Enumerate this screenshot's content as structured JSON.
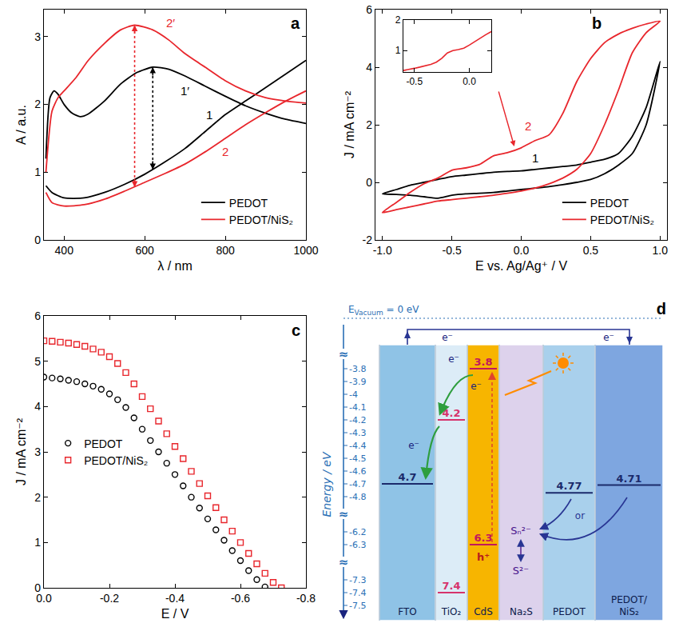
{
  "chart_data": [
    {
      "type": "line",
      "panel_label": "a",
      "x_label": "λ / nm",
      "y_label": "A / a.u.",
      "xlim": [
        350,
        1000
      ],
      "xticks": [
        400,
        600,
        800,
        1000
      ],
      "ylim": [
        0,
        3.4
      ],
      "yticks": [
        0,
        1,
        2,
        3
      ],
      "grid": false,
      "legend": "lower right",
      "series": [
        {
          "name": "PEDOT",
          "color": "#000000",
          "label": "1",
          "label_at": [
            760,
            1.85
          ],
          "x": [
            355,
            370,
            400,
            450,
            500,
            550,
            600,
            650,
            700,
            750,
            800,
            850,
            900,
            950,
            1000
          ],
          "values": [
            0.8,
            0.7,
            0.62,
            0.62,
            0.7,
            0.82,
            0.97,
            1.15,
            1.35,
            1.6,
            1.85,
            2.05,
            2.25,
            2.45,
            2.65
          ]
        },
        {
          "name": "PEDOT",
          "color": "#000000",
          "label": "1′",
          "label_at": [
            700,
            2.2
          ],
          "x": [
            355,
            365,
            375,
            385,
            400,
            420,
            440,
            460,
            500,
            540,
            580,
            620,
            660,
            700,
            750,
            800,
            850,
            900,
            950,
            1000
          ],
          "values": [
            1.2,
            2.1,
            2.2,
            2.15,
            2.0,
            1.87,
            1.82,
            1.86,
            2.05,
            2.3,
            2.47,
            2.55,
            2.52,
            2.42,
            2.27,
            2.12,
            1.98,
            1.87,
            1.78,
            1.72
          ]
        },
        {
          "name": "PEDOT/NiS₂",
          "color": "#e8262c",
          "label": "2",
          "label_at": [
            800,
            1.3
          ],
          "x": [
            355,
            370,
            400,
            450,
            500,
            550,
            600,
            650,
            700,
            750,
            800,
            850,
            900,
            950,
            1000
          ],
          "values": [
            0.7,
            0.55,
            0.5,
            0.52,
            0.6,
            0.72,
            0.85,
            0.98,
            1.12,
            1.3,
            1.5,
            1.7,
            1.88,
            2.05,
            2.2
          ]
        },
        {
          "name": "PEDOT/NiS₂",
          "color": "#e8262c",
          "label": "2′",
          "label_at": [
            665,
            3.2
          ],
          "x": [
            355,
            370,
            385,
            400,
            430,
            460,
            500,
            540,
            575,
            620,
            660,
            700,
            750,
            800,
            850,
            900,
            950,
            1000
          ],
          "values": [
            1.0,
            1.9,
            2.1,
            2.2,
            2.4,
            2.65,
            2.9,
            3.1,
            3.17,
            3.1,
            2.95,
            2.75,
            2.55,
            2.35,
            2.2,
            2.1,
            2.05,
            2.02
          ]
        }
      ],
      "arrows": [
        {
          "x": 575,
          "y0": 0.78,
          "y1": 3.17,
          "color": "#e8262c"
        },
        {
          "x": 620,
          "y0": 1.04,
          "y1": 2.55,
          "color": "#000000"
        }
      ]
    },
    {
      "type": "line",
      "panel_label": "b",
      "x_label": "E vs. Ag/Ag⁺ / V",
      "y_label": "J / mA cm⁻²",
      "xlim": [
        -1.05,
        1.05
      ],
      "xticks": [
        {
          "value": -1,
          "label": "-1.0"
        },
        -0.5,
        {
          "value": 0,
          "label": "0.0"
        },
        0.5,
        {
          "value": 1,
          "label": "1.0"
        }
      ],
      "ylim": [
        -2,
        6
      ],
      "yticks": [
        -2,
        0,
        2,
        4,
        6
      ],
      "grid": false,
      "legend": "lower right",
      "series": [
        {
          "name": "PEDOT",
          "color": "#000000",
          "label": "1",
          "label_at": [
            0.1,
            0.85
          ],
          "x": [
            -1.0,
            -0.9,
            -0.8,
            -0.7,
            -0.6,
            -0.5,
            -0.4,
            -0.3,
            -0.2,
            -0.1,
            0,
            0.1,
            0.2,
            0.3,
            0.4,
            0.5,
            0.6,
            0.7,
            0.8,
            0.9,
            1.0,
            0.9,
            0.8,
            0.7,
            0.6,
            0.5,
            0.4,
            0.3,
            0.2,
            0.1,
            0,
            -0.1,
            -0.2,
            -0.3,
            -0.4,
            -0.5,
            -0.6,
            -0.7,
            -0.8,
            -0.9,
            -1.0
          ],
          "values": [
            -0.4,
            -0.25,
            -0.1,
            0,
            0.1,
            0.2,
            0.25,
            0.3,
            0.35,
            0.38,
            0.4,
            0.45,
            0.5,
            0.55,
            0.6,
            0.7,
            0.8,
            1.0,
            1.6,
            2.6,
            4.2,
            2.0,
            1.0,
            0.6,
            0.3,
            0.1,
            0,
            -0.08,
            -0.15,
            -0.2,
            -0.25,
            -0.3,
            -0.35,
            -0.38,
            -0.4,
            -0.45,
            -0.55,
            -0.5,
            -0.45,
            -0.42,
            -0.4
          ]
        },
        {
          "name": "PEDOT/NiS₂",
          "color": "#e8262c",
          "label": "2",
          "label_at": [
            0.05,
            1.95
          ],
          "x": [
            -1.0,
            -0.9,
            -0.8,
            -0.7,
            -0.6,
            -0.5,
            -0.4,
            -0.3,
            -0.2,
            -0.1,
            0,
            0.1,
            0.2,
            0.3,
            0.4,
            0.5,
            0.6,
            0.7,
            0.8,
            0.9,
            1.0,
            0.9,
            0.8,
            0.7,
            0.6,
            0.5,
            0.4,
            0.3,
            0.2,
            0.1,
            0,
            -0.1,
            -0.2,
            -0.3,
            -0.4,
            -0.5,
            -0.6,
            -0.7,
            -0.8,
            -0.9,
            -1.0
          ],
          "values": [
            -1.05,
            -0.7,
            -0.35,
            -0.05,
            0.15,
            0.42,
            0.5,
            0.62,
            0.92,
            1.03,
            1.2,
            1.45,
            1.65,
            2.4,
            3.5,
            4.3,
            4.85,
            5.15,
            5.35,
            5.5,
            5.6,
            5.2,
            4.5,
            3.2,
            2.0,
            1.0,
            0.45,
            0.15,
            -0.05,
            -0.2,
            -0.3,
            -0.38,
            -0.45,
            -0.5,
            -0.55,
            -0.6,
            -0.65,
            -0.75,
            -0.85,
            -0.95,
            -1.05
          ]
        }
      ],
      "inset": {
        "color": "#e8262c",
        "x": [
          -0.6,
          -0.55,
          -0.5,
          -0.45,
          -0.4,
          -0.35,
          -0.3,
          -0.25,
          -0.2,
          -0.15,
          -0.1,
          -0.05,
          0,
          0.05,
          0.1,
          0.15,
          0.2
        ],
        "values": [
          0.35,
          0.38,
          0.42,
          0.46,
          0.5,
          0.55,
          0.62,
          0.75,
          0.92,
          1.0,
          1.03,
          1.08,
          1.18,
          1.3,
          1.42,
          1.52,
          1.62
        ],
        "xlim": [
          -0.6,
          0.2
        ],
        "xticks": [
          -0.5,
          {
            "value": 0,
            "label": "0.0"
          }
        ],
        "ylim": [
          0.3,
          2
        ],
        "yticks": [
          1,
          2
        ],
        "points_to": [
          -0.05,
          1.25
        ]
      }
    },
    {
      "type": "scatter",
      "panel_label": "c",
      "x_label": "E / V",
      "y_label": "J / mA cm⁻²",
      "xlim": [
        0,
        -0.8
      ],
      "xticks": [
        {
          "value": 0,
          "label": "0.0"
        },
        -0.2,
        -0.4,
        -0.6,
        -0.8
      ],
      "ylim": [
        0,
        6
      ],
      "yticks": [
        0,
        1,
        2,
        3,
        4,
        5,
        6
      ],
      "grid": false,
      "legend": "left",
      "series": [
        {
          "name": "PEDOT",
          "color": "#000000",
          "marker": "circle-open",
          "x": [
            0,
            -0.025,
            -0.05,
            -0.075,
            -0.1,
            -0.125,
            -0.15,
            -0.175,
            -0.2,
            -0.225,
            -0.25,
            -0.275,
            -0.3,
            -0.325,
            -0.35,
            -0.375,
            -0.4,
            -0.425,
            -0.45,
            -0.475,
            -0.5,
            -0.525,
            -0.55,
            -0.575,
            -0.6,
            -0.625,
            -0.65,
            -0.675
          ],
          "values": [
            4.65,
            4.63,
            4.61,
            4.58,
            4.55,
            4.5,
            4.45,
            4.38,
            4.28,
            4.15,
            3.98,
            3.75,
            3.5,
            3.25,
            3.0,
            2.75,
            2.5,
            2.25,
            2.0,
            1.76,
            1.52,
            1.28,
            1.05,
            0.82,
            0.6,
            0.38,
            0.18,
            0.02
          ]
        },
        {
          "name": "PEDOT/NiS₂",
          "color": "#e8262c",
          "marker": "square-open",
          "x": [
            0,
            -0.025,
            -0.05,
            -0.075,
            -0.1,
            -0.125,
            -0.15,
            -0.175,
            -0.2,
            -0.225,
            -0.25,
            -0.275,
            -0.3,
            -0.325,
            -0.35,
            -0.375,
            -0.4,
            -0.425,
            -0.45,
            -0.475,
            -0.5,
            -0.525,
            -0.55,
            -0.575,
            -0.6,
            -0.625,
            -0.65,
            -0.675,
            -0.7,
            -0.725
          ],
          "values": [
            5.45,
            5.44,
            5.42,
            5.4,
            5.37,
            5.33,
            5.27,
            5.2,
            5.1,
            4.95,
            4.75,
            4.5,
            4.22,
            3.95,
            3.68,
            3.4,
            3.12,
            2.85,
            2.57,
            2.3,
            2.03,
            1.77,
            1.5,
            1.25,
            1.0,
            0.76,
            0.53,
            0.32,
            0.12,
            0
          ]
        }
      ]
    }
  ],
  "diagram": {
    "panel_label": "d",
    "vacuum_label": {
      "symbol": "E",
      "subscript": "Vacuum",
      "text": " = 0 eV"
    },
    "axis_label": "Energy / eV",
    "ticks": [
      -3.8,
      -3.9,
      -4.0,
      -4.1,
      -4.2,
      -4.3,
      -4.4,
      -4.5,
      -4.6,
      -4.7,
      -4.8,
      -6.2,
      -6.3,
      -7.3,
      -7.4,
      -7.5
    ],
    "break_mark": "≈",
    "breaks": [
      [
        -4.8,
        -6.2
      ],
      [
        -6.3,
        -7.3
      ]
    ],
    "layers": [
      {
        "name": "FTO",
        "color": "#8fc3e6",
        "levels": [
          {
            "value": -4.7,
            "label": "4.7",
            "color": "#1b2a6b"
          }
        ]
      },
      {
        "name": "TiO₂",
        "color": "#dcecf7",
        "levels": [
          {
            "value": -4.2,
            "label": "4.2",
            "color": "#d6336c"
          },
          {
            "value": -7.4,
            "label": "7.4",
            "color": "#d6336c"
          }
        ]
      },
      {
        "name": "CdS",
        "color": "#f7b500",
        "levels": [
          {
            "value": -3.8,
            "label": "3.8",
            "color": "#c2185b"
          },
          {
            "value": -6.3,
            "label": "6.3",
            "color": "#c2185b"
          }
        ]
      },
      {
        "name": "Na₂S",
        "color": "#ddd2ec",
        "levels": []
      },
      {
        "name": "PEDOT",
        "color": "#a9d0ec",
        "levels": [
          {
            "value": -4.77,
            "label": "4.77",
            "color": "#1b2a6b"
          }
        ]
      },
      {
        "name": "PEDOT/NiS₂",
        "color": "#7ea6e0",
        "levels": [
          {
            "value": -4.71,
            "label": "4.71",
            "color": "#1b2a6b"
          }
        ]
      }
    ],
    "electron": "e⁻",
    "hole": "h⁺",
    "polysulfide": "Sₙ²⁻",
    "sulfide": "S²⁻",
    "or_label": "or"
  }
}
